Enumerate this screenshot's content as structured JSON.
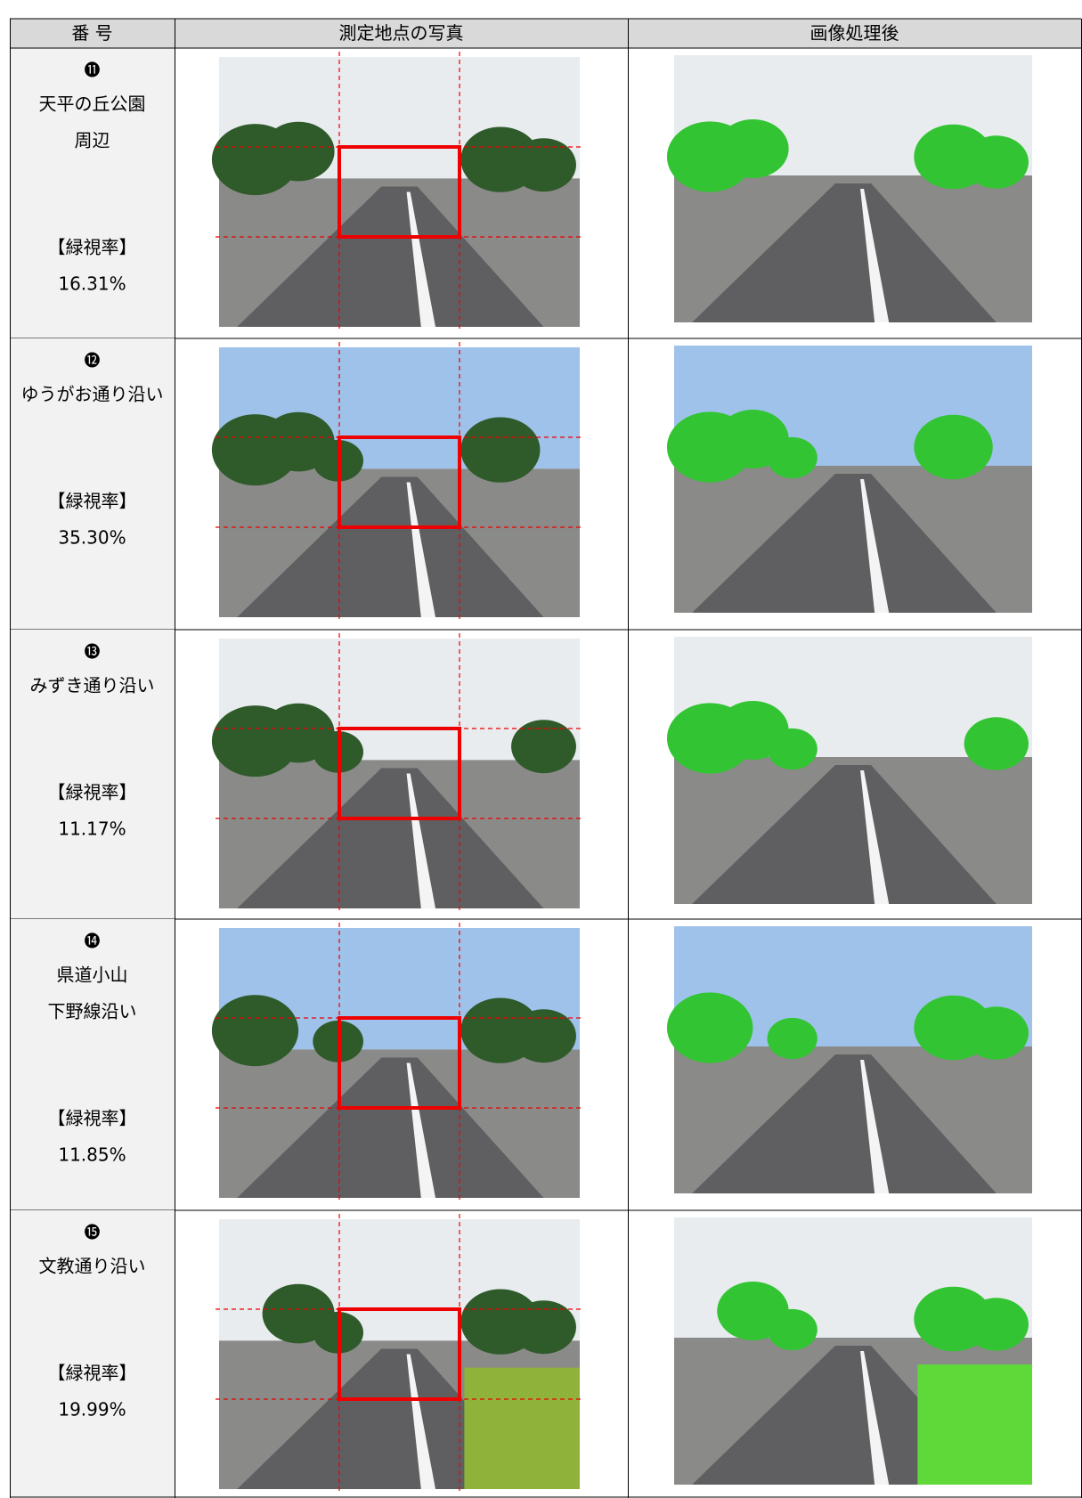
{
  "header": {
    "cells": [
      "番 号",
      "測定地点の写真",
      "画像処理後"
    ]
  },
  "rows": [
    {
      "number": "⓫",
      "name_lines": [
        "天平の丘公園",
        "周辺"
      ],
      "label": "【緑視率】",
      "rate": "16.31%"
    },
    {
      "number": "⓬",
      "name_lines": [
        "ゆうがお通り沿い"
      ],
      "label": "【緑視率】",
      "rate": "35.30%"
    },
    {
      "number": "⓭",
      "name_lines": [
        "みずき通り沿い"
      ],
      "label": "【緑視率】",
      "rate": "11.17%"
    },
    {
      "number": "⓮",
      "name_lines": [
        "県道小山",
        "下野線沿い"
      ],
      "label": "【緑視率】",
      "rate": "11.85%"
    },
    {
      "number": "⓯",
      "name_lines": [
        "文教通り沿い"
      ],
      "label": "【緑視率】",
      "rate": "19.99%"
    }
  ]
}
